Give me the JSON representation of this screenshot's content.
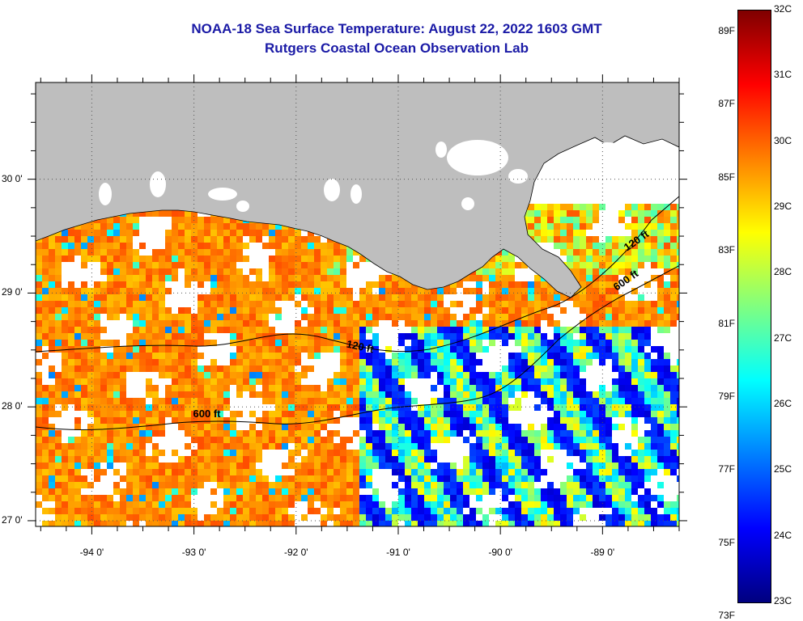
{
  "title": "NOAA-18 Sea Surface Temperature:  August 22, 2022 1603 GMT",
  "subtitle": "Rutgers Coastal Ocean Observation Lab",
  "map": {
    "lon_range": [
      -94.55,
      -88.25
    ],
    "lat_range": [
      26.95,
      30.85
    ],
    "lat_labels": [
      {
        "value": 30,
        "text": "30 0'"
      },
      {
        "value": 29,
        "text": "29 0'"
      },
      {
        "value": 28,
        "text": "28 0'"
      },
      {
        "value": 27,
        "text": "27 0'"
      }
    ],
    "lon_labels": [
      {
        "value": -94,
        "text": "-94 0'"
      },
      {
        "value": -93,
        "text": "-93 0'"
      },
      {
        "value": -92,
        "text": "-92 0'"
      },
      {
        "value": -91,
        "text": "-91 0'"
      },
      {
        "value": -90,
        "text": "-90 0'"
      },
      {
        "value": -89,
        "text": "-89 0'"
      }
    ],
    "contour_labels": [
      {
        "text": "120 ft",
        "lon": -88.65,
        "lat": 29.45
      },
      {
        "text": "600 ft",
        "lon": -88.75,
        "lat": 29.1
      },
      {
        "text": "120 ft",
        "lon": -91.35,
        "lat": 28.52
      },
      {
        "text": "600 ft",
        "lon": -92.85,
        "lat": 27.93
      }
    ],
    "colors": {
      "land": "#bebebe",
      "missing": "#ffffff",
      "contour": "#000000",
      "grid": "#555555"
    }
  },
  "colorbar": {
    "range_c": [
      23,
      32
    ],
    "colors": [
      "#00007f",
      "#0000ff",
      "#0080ff",
      "#00ffff",
      "#80ff80",
      "#ffff00",
      "#ff8000",
      "#ff0000",
      "#7f0000"
    ],
    "fahrenheit_labels": [
      "89F",
      "87F",
      "85F",
      "83F",
      "81F",
      "79F",
      "77F",
      "75F",
      "73F"
    ],
    "celsius_labels": [
      "32C",
      "31C",
      "30C",
      "29C",
      "28C",
      "27C",
      "26C",
      "25C",
      "24C",
      "23C"
    ]
  }
}
